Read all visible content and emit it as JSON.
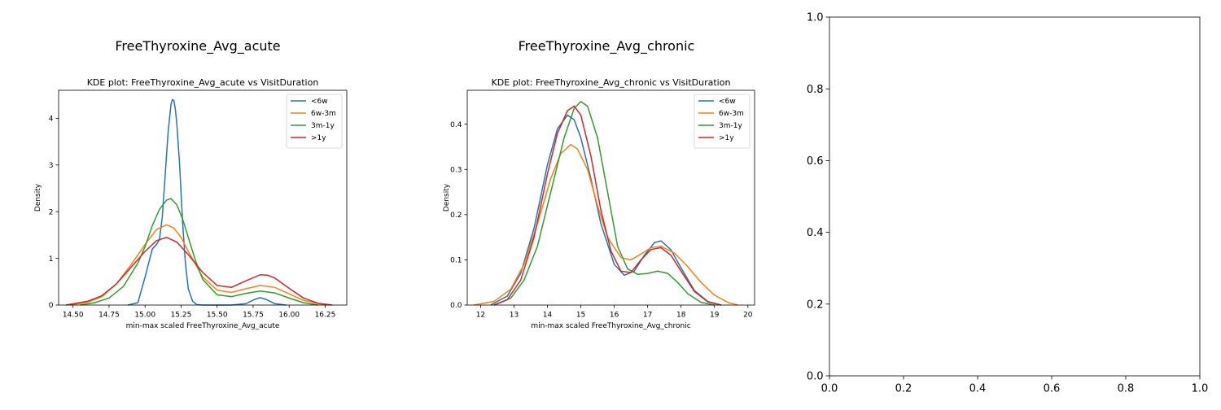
{
  "figure": {
    "panels": [
      {
        "title": "FreeThyroxine_Avg_acute"
      },
      {
        "title": "FreeThyroxine_Avg_chronic"
      },
      {
        "title": ""
      }
    ]
  },
  "colors": {
    "<6w": "#1f77b4",
    "6w-3m": "#ff7f0e",
    "3m-1y": "#2ca02c",
    ">1y": "#d62728"
  },
  "chart_data": [
    {
      "type": "line",
      "kind": "kde",
      "title": "KDE plot:  FreeThyroxine_Avg_acute vs VisitDuration",
      "xlabel": "min-max scaled FreeThyroxine_Avg_acute",
      "ylabel": "Density",
      "xlim": [
        14.4,
        16.4
      ],
      "ylim": [
        0,
        4.6
      ],
      "xticks": [
        14.5,
        14.75,
        15.0,
        15.25,
        15.5,
        15.75,
        16.0,
        16.25
      ],
      "xtick_labels": [
        "14.50",
        "14.75",
        "15.00",
        "15.25",
        "15.50",
        "15.75",
        "16.00",
        "16.25"
      ],
      "yticks": [
        0,
        1,
        2,
        3,
        4
      ],
      "ytick_labels": [
        "0",
        "1",
        "2",
        "3",
        "4"
      ],
      "legend": [
        "<6w",
        "6w-3m",
        "3m-1y",
        ">1y"
      ],
      "legend_position": "top-right",
      "series": [
        {
          "name": "<6w",
          "x": [
            14.88,
            14.95,
            15.0,
            15.05,
            15.08,
            15.1,
            15.12,
            15.14,
            15.16,
            15.18,
            15.19,
            15.2,
            15.21,
            15.22,
            15.24,
            15.26,
            15.28,
            15.3,
            15.33,
            15.36,
            15.4,
            15.5,
            15.6,
            15.7,
            15.76,
            15.8,
            15.84,
            15.9,
            15.98
          ],
          "y": [
            0,
            0.05,
            0.6,
            1.2,
            1.3,
            1.4,
            1.9,
            2.8,
            3.7,
            4.3,
            4.4,
            4.38,
            4.2,
            3.9,
            3.0,
            1.8,
            0.9,
            0.35,
            0.08,
            0.01,
            0,
            0,
            0,
            0.03,
            0.12,
            0.16,
            0.12,
            0.03,
            0
          ]
        },
        {
          "name": "6w-3m",
          "x": [
            14.48,
            14.6,
            14.7,
            14.8,
            14.9,
            15.0,
            15.08,
            15.15,
            15.2,
            15.25,
            15.3,
            15.4,
            15.5,
            15.6,
            15.7,
            15.8,
            15.9,
            16.0,
            16.1,
            16.2,
            16.28
          ],
          "y": [
            0,
            0.06,
            0.18,
            0.45,
            0.85,
            1.3,
            1.62,
            1.72,
            1.65,
            1.45,
            1.15,
            0.6,
            0.32,
            0.27,
            0.35,
            0.42,
            0.38,
            0.24,
            0.1,
            0.03,
            0
          ]
        },
        {
          "name": "3m-1y",
          "x": [
            14.55,
            14.65,
            14.75,
            14.85,
            14.95,
            15.0,
            15.05,
            15.1,
            15.15,
            15.18,
            15.22,
            15.26,
            15.3,
            15.35,
            15.4,
            15.5,
            15.6,
            15.7,
            15.8,
            15.9,
            16.0,
            16.1,
            16.2
          ],
          "y": [
            0,
            0.05,
            0.15,
            0.4,
            0.9,
            1.25,
            1.7,
            2.05,
            2.25,
            2.28,
            2.15,
            1.85,
            1.45,
            0.95,
            0.55,
            0.22,
            0.18,
            0.25,
            0.3,
            0.26,
            0.15,
            0.05,
            0
          ]
        },
        {
          "name": ">1y",
          "x": [
            14.45,
            14.6,
            14.7,
            14.8,
            14.9,
            15.0,
            15.08,
            15.15,
            15.22,
            15.3,
            15.4,
            15.5,
            15.6,
            15.7,
            15.8,
            15.85,
            15.9,
            16.0,
            16.1,
            16.2,
            16.3
          ],
          "y": [
            0,
            0.08,
            0.2,
            0.45,
            0.8,
            1.15,
            1.38,
            1.45,
            1.35,
            1.08,
            0.7,
            0.42,
            0.38,
            0.52,
            0.65,
            0.64,
            0.58,
            0.36,
            0.15,
            0.04,
            0
          ]
        }
      ]
    },
    {
      "type": "line",
      "kind": "kde",
      "title": "KDE plot:  FreeThyroxine_Avg_chronic vs VisitDuration",
      "xlabel": "min-max scaled FreeThyroxine_Avg_chronic",
      "ylabel": "Density",
      "xlim": [
        11.6,
        20.2
      ],
      "ylim": [
        0,
        0.475
      ],
      "xticks": [
        12,
        13,
        14,
        15,
        16,
        17,
        18,
        19,
        20
      ],
      "xtick_labels": [
        "12",
        "13",
        "14",
        "15",
        "16",
        "17",
        "18",
        "19",
        "20"
      ],
      "yticks": [
        0,
        0.1,
        0.2,
        0.3,
        0.4
      ],
      "ytick_labels": [
        "0.0",
        "0.1",
        "0.2",
        "0.3",
        "0.4"
      ],
      "legend": [
        "<6w",
        "6w-3m",
        "3m-1y",
        ">1y"
      ],
      "legend_position": "top-right",
      "series": [
        {
          "name": "<6w",
          "x": [
            12.3,
            12.8,
            13.2,
            13.6,
            14.0,
            14.3,
            14.6,
            14.8,
            15.0,
            15.3,
            15.6,
            16.0,
            16.3,
            16.6,
            16.9,
            17.2,
            17.4,
            17.7,
            18.0,
            18.4,
            18.8,
            19.2
          ],
          "y": [
            0,
            0.02,
            0.07,
            0.17,
            0.31,
            0.39,
            0.42,
            0.41,
            0.37,
            0.28,
            0.18,
            0.09,
            0.066,
            0.075,
            0.11,
            0.138,
            0.142,
            0.122,
            0.082,
            0.032,
            0.008,
            0
          ]
        },
        {
          "name": "6w-3m",
          "x": [
            11.8,
            12.4,
            12.9,
            13.3,
            13.7,
            14.1,
            14.4,
            14.7,
            14.9,
            15.2,
            15.5,
            15.8,
            16.2,
            16.5,
            16.8,
            17.1,
            17.4,
            17.8,
            18.2,
            18.6,
            19.0,
            19.4,
            19.7
          ],
          "y": [
            0,
            0.008,
            0.035,
            0.09,
            0.18,
            0.28,
            0.335,
            0.355,
            0.345,
            0.3,
            0.22,
            0.15,
            0.105,
            0.1,
            0.113,
            0.127,
            0.13,
            0.115,
            0.085,
            0.05,
            0.022,
            0.006,
            0
          ]
        },
        {
          "name": "3m-1y",
          "x": [
            12.4,
            12.9,
            13.3,
            13.7,
            14.1,
            14.5,
            14.8,
            15.0,
            15.2,
            15.5,
            15.8,
            16.1,
            16.4,
            16.7,
            17.0,
            17.3,
            17.6,
            17.9,
            18.2,
            18.6,
            19.0
          ],
          "y": [
            0,
            0.015,
            0.055,
            0.13,
            0.25,
            0.37,
            0.435,
            0.45,
            0.44,
            0.37,
            0.25,
            0.13,
            0.08,
            0.068,
            0.07,
            0.075,
            0.07,
            0.05,
            0.025,
            0.006,
            0
          ]
        },
        {
          "name": ">1y",
          "x": [
            12.4,
            12.8,
            13.2,
            13.6,
            14.0,
            14.3,
            14.6,
            14.8,
            15.0,
            15.3,
            15.6,
            15.9,
            16.2,
            16.5,
            16.8,
            17.1,
            17.4,
            17.7,
            18.0,
            18.4,
            18.8,
            19.2
          ],
          "y": [
            0,
            0.012,
            0.055,
            0.15,
            0.29,
            0.38,
            0.43,
            0.44,
            0.42,
            0.33,
            0.21,
            0.12,
            0.075,
            0.072,
            0.1,
            0.123,
            0.127,
            0.11,
            0.075,
            0.03,
            0.007,
            0
          ]
        }
      ]
    },
    {
      "type": "line",
      "kind": "empty",
      "title": "",
      "xlabel": "",
      "ylabel": "",
      "xlim": [
        0,
        1
      ],
      "ylim": [
        0,
        1
      ],
      "xticks": [
        0,
        0.2,
        0.4,
        0.6,
        0.8,
        1.0
      ],
      "xtick_labels": [
        "0.0",
        "0.2",
        "0.4",
        "0.6",
        "0.8",
        "1.0"
      ],
      "yticks": [
        0,
        0.2,
        0.4,
        0.6,
        0.8,
        1.0
      ],
      "ytick_labels": [
        "0.0",
        "0.2",
        "0.4",
        "0.6",
        "0.8",
        "1.0"
      ],
      "legend": [],
      "series": []
    }
  ]
}
